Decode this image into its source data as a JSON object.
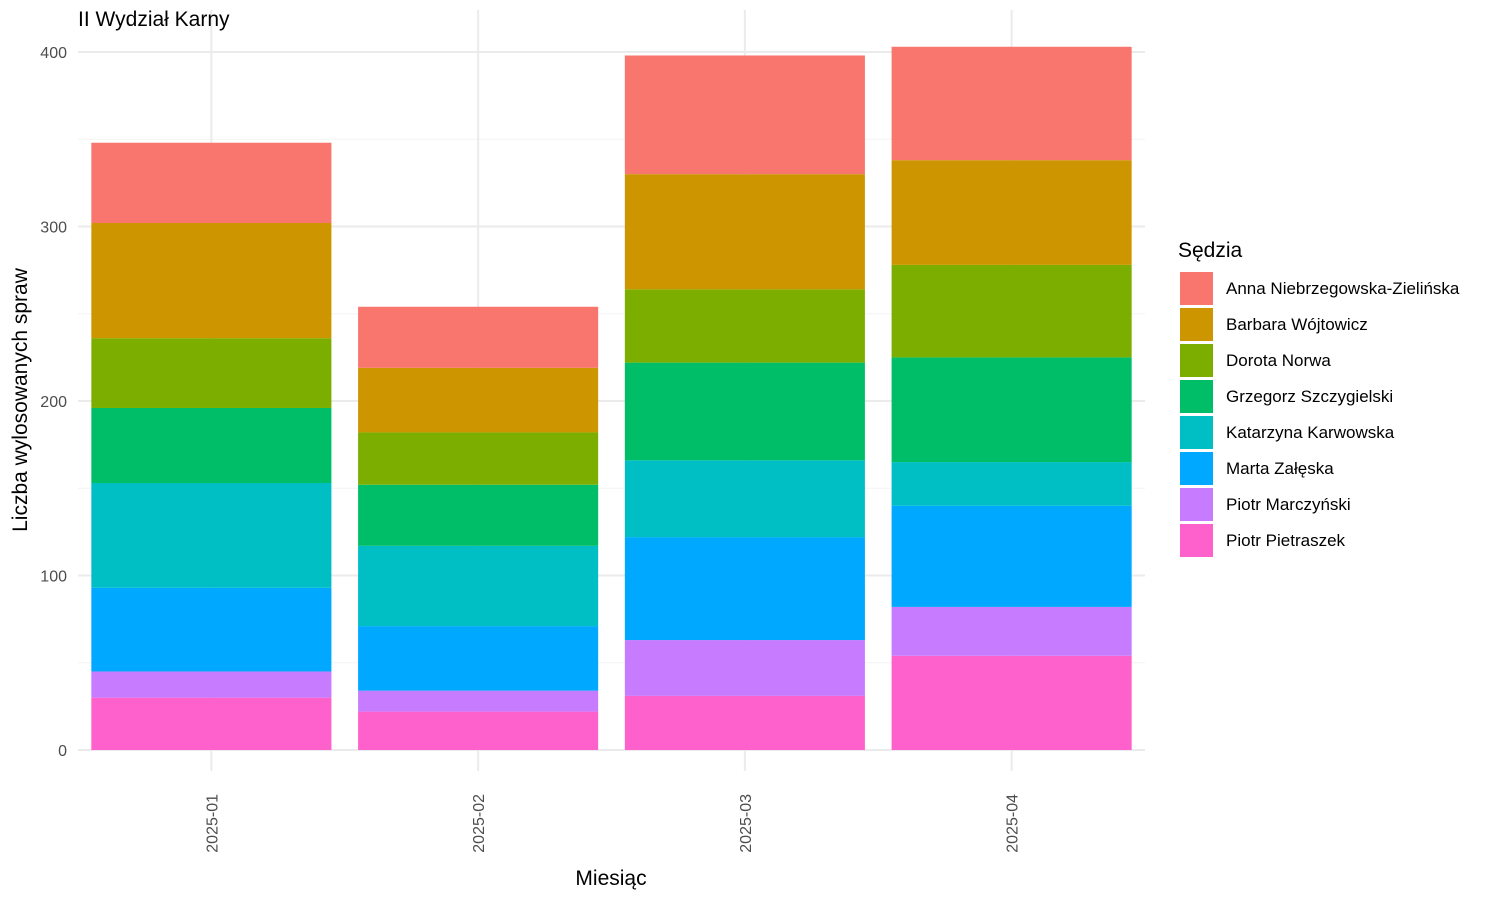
{
  "chart_data": {
    "type": "bar",
    "stacked": true,
    "title": "II Wydział Karny",
    "xlabel": "Miesiąc",
    "ylabel": "Liczba wylosowanych spraw",
    "categories": [
      "2025-01",
      "2025-02",
      "2025-03",
      "2025-04"
    ],
    "ylim": [
      0,
      420
    ],
    "yticks": [
      0,
      100,
      200,
      300,
      400
    ],
    "grid": true,
    "legend": {
      "title": "Sędzia",
      "position": "right"
    },
    "series": [
      {
        "name": "Anna Niebrzegowska-Zielińska",
        "color": "#F8766D",
        "values": [
          46,
          35,
          68,
          65
        ]
      },
      {
        "name": "Barbara Wójtowicz",
        "color": "#CD9600",
        "values": [
          66,
          37,
          66,
          60
        ]
      },
      {
        "name": "Dorota Norwa",
        "color": "#7CAE00",
        "values": [
          40,
          30,
          42,
          53
        ]
      },
      {
        "name": "Grzegorz Szczygielski",
        "color": "#00BE67",
        "values": [
          43,
          35,
          56,
          60
        ]
      },
      {
        "name": "Katarzyna Karwowska",
        "color": "#00BFC4",
        "values": [
          60,
          46,
          44,
          25
        ]
      },
      {
        "name": "Marta Załęska",
        "color": "#00A9FF",
        "values": [
          48,
          37,
          59,
          58
        ]
      },
      {
        "name": "Piotr Marczyński",
        "color": "#C77CFF",
        "values": [
          15,
          12,
          32,
          28
        ]
      },
      {
        "name": "Piotr Pietraszek",
        "color": "#FF61CC",
        "values": [
          30,
          22,
          31,
          54
        ]
      }
    ]
  }
}
